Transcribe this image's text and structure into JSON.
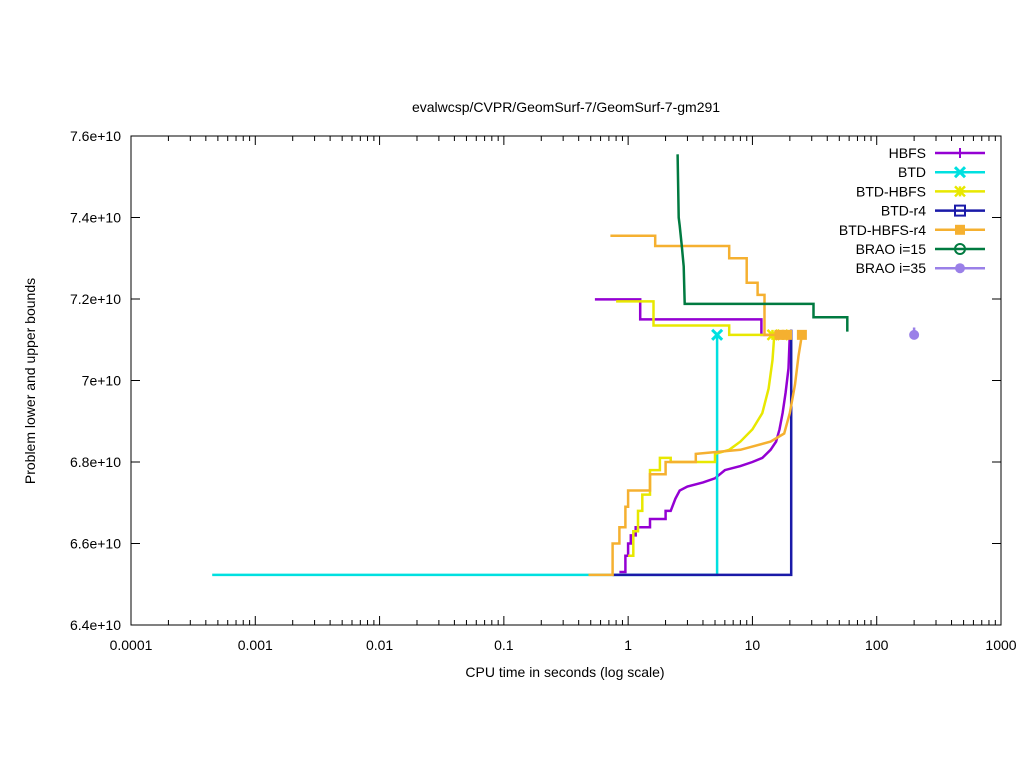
{
  "chart_data": {
    "type": "line",
    "title": "evalwcsp/CVPR/GeomSurf-7/GeomSurf-7-gm291",
    "xlabel": "CPU time in seconds (log scale)",
    "ylabel": "Problem lower and upper bounds",
    "x_scale": "log",
    "xlim": [
      0.0001,
      1000
    ],
    "ylim": [
      64000000000,
      76000000000
    ],
    "x_ticks": [
      0.0001,
      0.001,
      0.01,
      0.1,
      1,
      10,
      100,
      1000
    ],
    "x_tick_labels": [
      "0.0001",
      "0.001",
      "0.01",
      "0.1",
      "1",
      "10",
      "100",
      "1000"
    ],
    "y_ticks": [
      64000000000,
      66000000000,
      68000000000,
      70000000000,
      72000000000,
      74000000000,
      76000000000
    ],
    "y_tick_labels": [
      "6.4e+10",
      "6.6e+10",
      "6.8e+10",
      "7e+10",
      "7.2e+10",
      "7.4e+10",
      "7.6e+10"
    ],
    "legend_position": "top-right",
    "grid": false,
    "series": [
      {
        "name": "HBFS",
        "color": "#9400d3",
        "marker": "plus",
        "marker_points": [],
        "segments": [
          [
            [
              0.54,
              71990000000
            ],
            [
              1.25,
              71990000000
            ],
            [
              1.25,
              71500000000
            ],
            [
              11.8,
              71500000000
            ],
            [
              11.8,
              71120000000
            ],
            [
              20.0,
              71120000000
            ]
          ],
          [
            [
              0.85,
              65300000000
            ],
            [
              0.95,
              65300000000
            ],
            [
              0.95,
              65700000000
            ],
            [
              1.0,
              65700000000
            ],
            [
              1.0,
              66000000000
            ],
            [
              1.05,
              66000000000
            ],
            [
              1.05,
              66200000000
            ],
            [
              1.15,
              66200000000
            ],
            [
              1.15,
              66400000000
            ],
            [
              1.5,
              66400000000
            ],
            [
              1.5,
              66600000000
            ],
            [
              2.0,
              66600000000
            ],
            [
              2.0,
              66800000000
            ],
            [
              2.2,
              66800000000
            ],
            [
              2.4,
              67100000000
            ],
            [
              2.6,
              67300000000
            ],
            [
              3.0,
              67400000000
            ],
            [
              4.0,
              67500000000
            ],
            [
              5.0,
              67600000000
            ],
            [
              6.0,
              67800000000
            ],
            [
              8.0,
              67900000000
            ],
            [
              10.0,
              68000000000
            ],
            [
              12.0,
              68100000000
            ],
            [
              14.0,
              68300000000
            ],
            [
              15.5,
              68500000000
            ],
            [
              16.5,
              68800000000
            ],
            [
              17.5,
              69200000000
            ],
            [
              18.5,
              69700000000
            ],
            [
              19.5,
              70300000000
            ],
            [
              20.0,
              71120000000
            ]
          ]
        ]
      },
      {
        "name": "BTD",
        "color": "#00e0e0",
        "marker": "cross",
        "marker_points": [
          [
            5.2,
            71120000000
          ]
        ],
        "segments": [
          [
            [
              0.00045,
              65230000000
            ],
            [
              0.48,
              65230000000
            ]
          ],
          [
            [
              0.48,
              65230000000
            ],
            [
              5.2,
              65230000000
            ],
            [
              5.2,
              71120000000
            ]
          ]
        ]
      },
      {
        "name": "BTD-HBFS",
        "color": "#e8e800",
        "marker": "star",
        "marker_points": [
          [
            14.5,
            71120000000
          ],
          [
            17.5,
            71120000000
          ]
        ],
        "segments": [
          [
            [
              0.8,
              71940000000
            ],
            [
              1.6,
              71940000000
            ],
            [
              1.6,
              71350000000
            ],
            [
              6.5,
              71350000000
            ],
            [
              6.5,
              71120000000
            ],
            [
              14.5,
              71120000000
            ]
          ],
          [
            [
              1.0,
              65700000000
            ],
            [
              1.1,
              65700000000
            ],
            [
              1.1,
              66300000000
            ],
            [
              1.2,
              66300000000
            ],
            [
              1.2,
              66800000000
            ],
            [
              1.3,
              66800000000
            ],
            [
              1.3,
              67200000000
            ],
            [
              1.5,
              67200000000
            ],
            [
              1.5,
              67800000000
            ],
            [
              1.8,
              67800000000
            ],
            [
              1.8,
              68100000000
            ],
            [
              2.2,
              68100000000
            ],
            [
              2.2,
              68000000000
            ],
            [
              5.0,
              68000000000
            ],
            [
              5.0,
              68200000000
            ],
            [
              6.5,
              68300000000
            ],
            [
              8.0,
              68500000000
            ],
            [
              10.0,
              68800000000
            ],
            [
              12.0,
              69200000000
            ],
            [
              13.5,
              69800000000
            ],
            [
              14.5,
              70500000000
            ],
            [
              15.0,
              71120000000
            ]
          ]
        ]
      },
      {
        "name": "BTD-r4",
        "color": "#1a1aa8",
        "marker": "square",
        "marker_points": [],
        "segments": [
          [
            [
              0.75,
              65230000000
            ],
            [
              20.5,
              65230000000
            ],
            [
              20.5,
              71250000000
            ]
          ]
        ]
      },
      {
        "name": "BTD-HBFS-r4",
        "color": "#f5b030",
        "marker": "filled-square",
        "marker_points": [
          [
            16.5,
            71120000000
          ],
          [
            19.0,
            71120000000
          ],
          [
            25.0,
            71120000000
          ]
        ],
        "segments": [
          [
            [
              0.72,
              73550000000
            ],
            [
              1.65,
              73550000000
            ],
            [
              1.65,
              73300000000
            ],
            [
              6.5,
              73300000000
            ],
            [
              6.5,
              73000000000
            ],
            [
              9.0,
              73000000000
            ],
            [
              9.0,
              72400000000
            ],
            [
              11.0,
              72400000000
            ],
            [
              11.0,
              72100000000
            ],
            [
              12.5,
              72100000000
            ],
            [
              12.5,
              71120000000
            ],
            [
              16.5,
              71120000000
            ]
          ],
          [
            [
              0.48,
              65230000000
            ],
            [
              0.75,
              65230000000
            ],
            [
              0.75,
              66000000000
            ],
            [
              0.85,
              66000000000
            ],
            [
              0.85,
              66400000000
            ],
            [
              0.95,
              66400000000
            ],
            [
              0.95,
              66900000000
            ],
            [
              1.0,
              66900000000
            ],
            [
              1.0,
              67300000000
            ],
            [
              1.5,
              67300000000
            ],
            [
              1.5,
              67700000000
            ],
            [
              2.0,
              67700000000
            ],
            [
              2.0,
              68000000000
            ],
            [
              3.5,
              68000000000
            ],
            [
              3.5,
              68200000000
            ],
            [
              8.0,
              68300000000
            ],
            [
              14.0,
              68500000000
            ],
            [
              18.0,
              68700000000
            ],
            [
              20.0,
              69200000000
            ],
            [
              22.0,
              69900000000
            ],
            [
              23.5,
              70600000000
            ],
            [
              25.0,
              71120000000
            ]
          ]
        ]
      },
      {
        "name": "BRAO i=15",
        "color": "#007a40",
        "marker": "circle",
        "marker_points": [],
        "segments": [
          [
            [
              2.5,
              75550000000
            ],
            [
              2.55,
              74000000000
            ],
            [
              2.6,
              73800000000
            ],
            [
              2.7,
              73300000000
            ],
            [
              2.8,
              72800000000
            ],
            [
              2.85,
              71880000000
            ],
            [
              31.0,
              71880000000
            ],
            [
              31.0,
              71550000000
            ],
            [
              58.0,
              71550000000
            ],
            [
              58.0,
              71200000000
            ]
          ]
        ]
      },
      {
        "name": "BRAO i=35",
        "color": "#9a80e8",
        "marker": "filled-circle",
        "marker_points": [
          [
            200,
            71120000000
          ]
        ],
        "segments": [
          [
            [
              200,
              71120000000
            ],
            [
              200,
              71300000000
            ]
          ]
        ]
      }
    ]
  }
}
